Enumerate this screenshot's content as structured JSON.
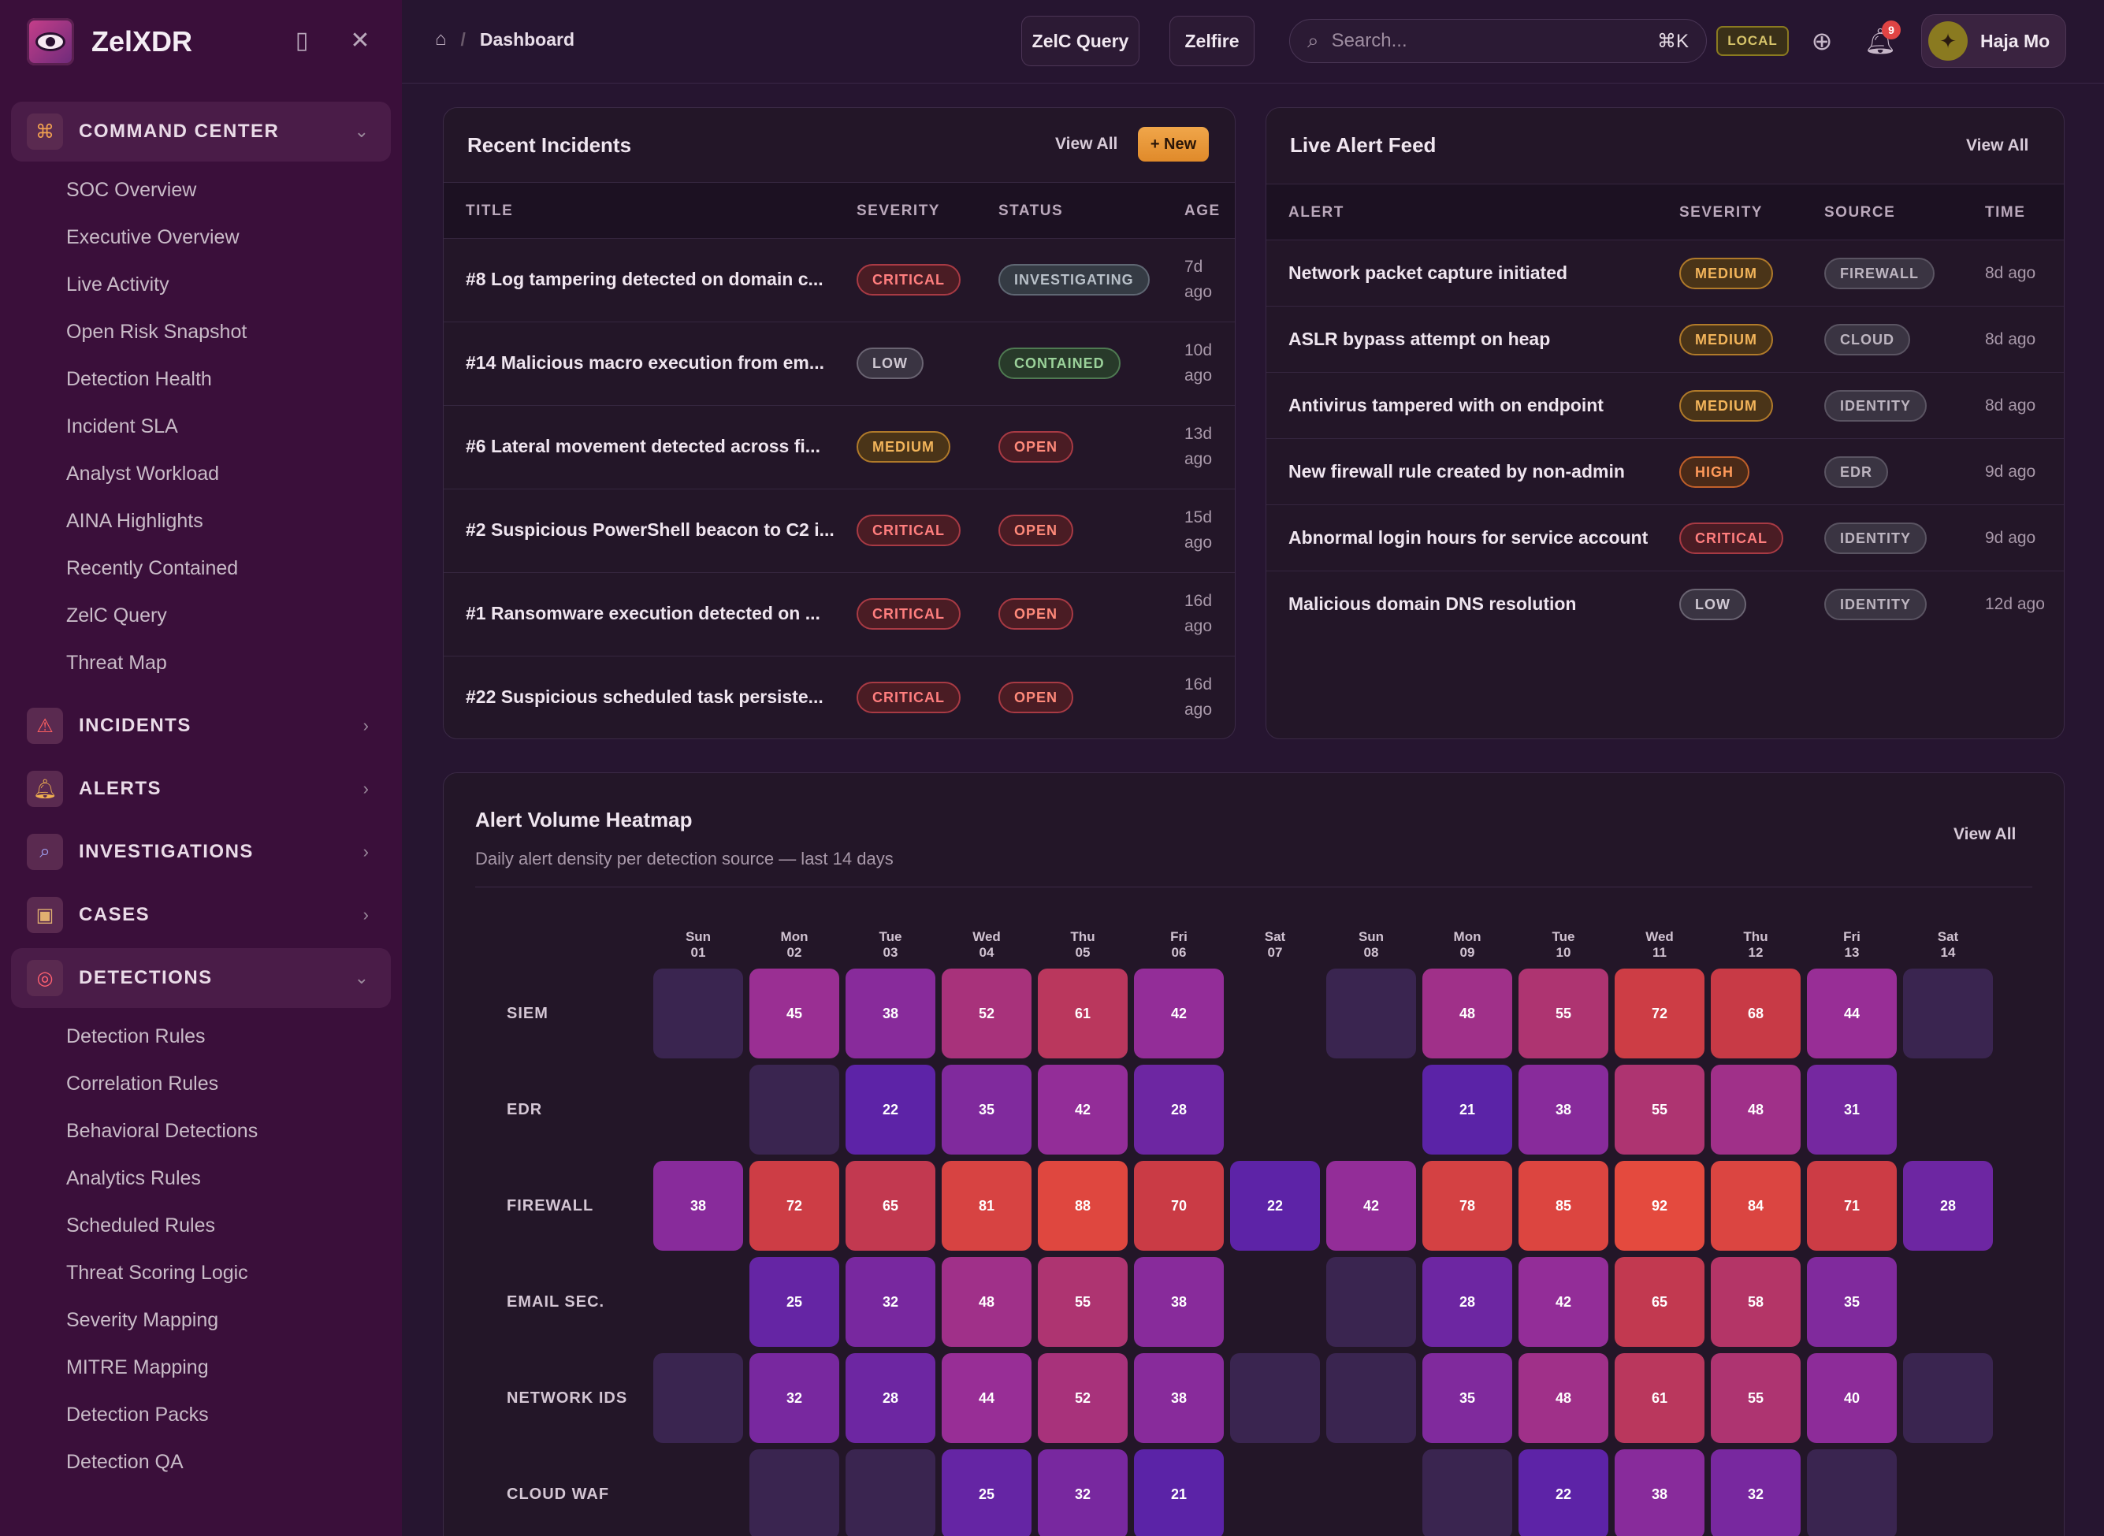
{
  "app": {
    "brand": "ZelXDR"
  },
  "sidebar": {
    "sections": [
      {
        "label": "COMMAND CENTER",
        "icon": "command-icon",
        "open": true,
        "items": [
          "SOC Overview",
          "Executive Overview",
          "Live Activity",
          "Open Risk Snapshot",
          "Detection Health",
          "Incident SLA",
          "Analyst Workload",
          "AINA Highlights",
          "Recently Contained",
          "ZelC Query",
          "Threat Map"
        ]
      },
      {
        "label": "INCIDENTS",
        "icon": "warning-icon",
        "open": false,
        "items": []
      },
      {
        "label": "ALERTS",
        "icon": "bell-icon",
        "open": false,
        "items": []
      },
      {
        "label": "INVESTIGATIONS",
        "icon": "magnifier-icon",
        "open": false,
        "items": []
      },
      {
        "label": "CASES",
        "icon": "briefcase-icon",
        "open": false,
        "items": []
      },
      {
        "label": "DETECTIONS",
        "icon": "target-icon",
        "open": true,
        "items": [
          "Detection Rules",
          "Correlation Rules",
          "Behavioral Detections",
          "Analytics Rules",
          "Scheduled Rules",
          "Threat Scoring Logic",
          "Severity Mapping",
          "MITRE Mapping",
          "Detection Packs",
          "Detection QA"
        ]
      }
    ]
  },
  "topbar": {
    "breadcrumb": "Dashboard",
    "query_btn": "ZelC Query",
    "fire_btn": "Zelfire",
    "search_placeholder": "Search...",
    "search_shortcut": "⌘K",
    "env_badge": "LOCAL",
    "notif_count": "9",
    "user_name": "Haja Mo"
  },
  "incidents": {
    "title": "Recent Incidents",
    "view_all": "View All",
    "new_btn": "+ New",
    "columns": [
      "TITLE",
      "SEVERITY",
      "STATUS",
      "AGE"
    ],
    "rows": [
      {
        "title": "#8 Log tampering detected on domain c...",
        "severity": "CRITICAL",
        "status": "INVESTIGATING",
        "age1": "7d",
        "age2": "ago"
      },
      {
        "title": "#14 Malicious macro execution from em...",
        "severity": "LOW",
        "status": "CONTAINED",
        "age1": "10d",
        "age2": "ago"
      },
      {
        "title": "#6 Lateral movement detected across fi...",
        "severity": "MEDIUM",
        "status": "OPEN",
        "age1": "13d",
        "age2": "ago"
      },
      {
        "title": "#2 Suspicious PowerShell beacon to C2 i...",
        "severity": "CRITICAL",
        "status": "OPEN",
        "age1": "15d",
        "age2": "ago"
      },
      {
        "title": "#1 Ransomware execution detected on ...",
        "severity": "CRITICAL",
        "status": "OPEN",
        "age1": "16d",
        "age2": "ago"
      },
      {
        "title": "#22 Suspicious scheduled task persiste...",
        "severity": "CRITICAL",
        "status": "OPEN",
        "age1": "16d",
        "age2": "ago"
      }
    ]
  },
  "alerts": {
    "title": "Live Alert Feed",
    "view_all": "View All",
    "columns": [
      "ALERT",
      "SEVERITY",
      "SOURCE",
      "TIME"
    ],
    "rows": [
      {
        "alert": "Network packet capture initiated",
        "severity": "MEDIUM",
        "source": "FIREWALL",
        "time": "8d ago"
      },
      {
        "alert": "ASLR bypass attempt on heap",
        "severity": "MEDIUM",
        "source": "CLOUD",
        "time": "8d ago"
      },
      {
        "alert": "Antivirus tampered with on endpoint",
        "severity": "MEDIUM",
        "source": "IDENTITY",
        "time": "8d ago"
      },
      {
        "alert": "New firewall rule created by non-admin",
        "severity": "HIGH",
        "source": "EDR",
        "time": "9d ago"
      },
      {
        "alert": "Abnormal login hours for service account",
        "severity": "CRITICAL",
        "source": "IDENTITY",
        "time": "9d ago"
      },
      {
        "alert": "Malicious domain DNS resolution",
        "severity": "LOW",
        "source": "IDENTITY",
        "time": "12d ago"
      }
    ]
  },
  "heatmap": {
    "title": "Alert Volume Heatmap",
    "subtitle": "Daily alert density per detection source — last 14 days",
    "view_all": "View All",
    "days": [
      [
        "Sun",
        "01"
      ],
      [
        "Mon",
        "02"
      ],
      [
        "Tue",
        "03"
      ],
      [
        "Wed",
        "04"
      ],
      [
        "Thu",
        "05"
      ],
      [
        "Fri",
        "06"
      ],
      [
        "Sat",
        "07"
      ],
      [
        "Sun",
        "08"
      ],
      [
        "Mon",
        "09"
      ],
      [
        "Tue",
        "10"
      ],
      [
        "Wed",
        "11"
      ],
      [
        "Thu",
        "12"
      ],
      [
        "Fri",
        "13"
      ],
      [
        "Sat",
        "14"
      ]
    ],
    "rows": [
      {
        "label": "SIEM",
        "values": [
          0,
          45,
          38,
          52,
          61,
          42,
          null,
          0,
          48,
          55,
          72,
          68,
          44,
          0
        ]
      },
      {
        "label": "EDR",
        "values": [
          null,
          0,
          22,
          35,
          42,
          28,
          null,
          null,
          21,
          38,
          55,
          48,
          31,
          null
        ]
      },
      {
        "label": "FIREWALL",
        "values": [
          38,
          72,
          65,
          81,
          88,
          70,
          22,
          42,
          78,
          85,
          92,
          84,
          71,
          28
        ]
      },
      {
        "label": "EMAIL SEC.",
        "values": [
          null,
          25,
          32,
          48,
          55,
          38,
          null,
          0,
          28,
          42,
          65,
          58,
          35,
          null
        ]
      },
      {
        "label": "NETWORK IDS",
        "values": [
          0,
          32,
          28,
          44,
          52,
          38,
          0,
          0,
          35,
          48,
          61,
          55,
          40,
          0
        ]
      },
      {
        "label": "CLOUD WAF",
        "values": [
          null,
          0,
          0,
          25,
          32,
          21,
          null,
          null,
          0,
          22,
          38,
          32,
          0,
          null
        ]
      }
    ]
  }
}
